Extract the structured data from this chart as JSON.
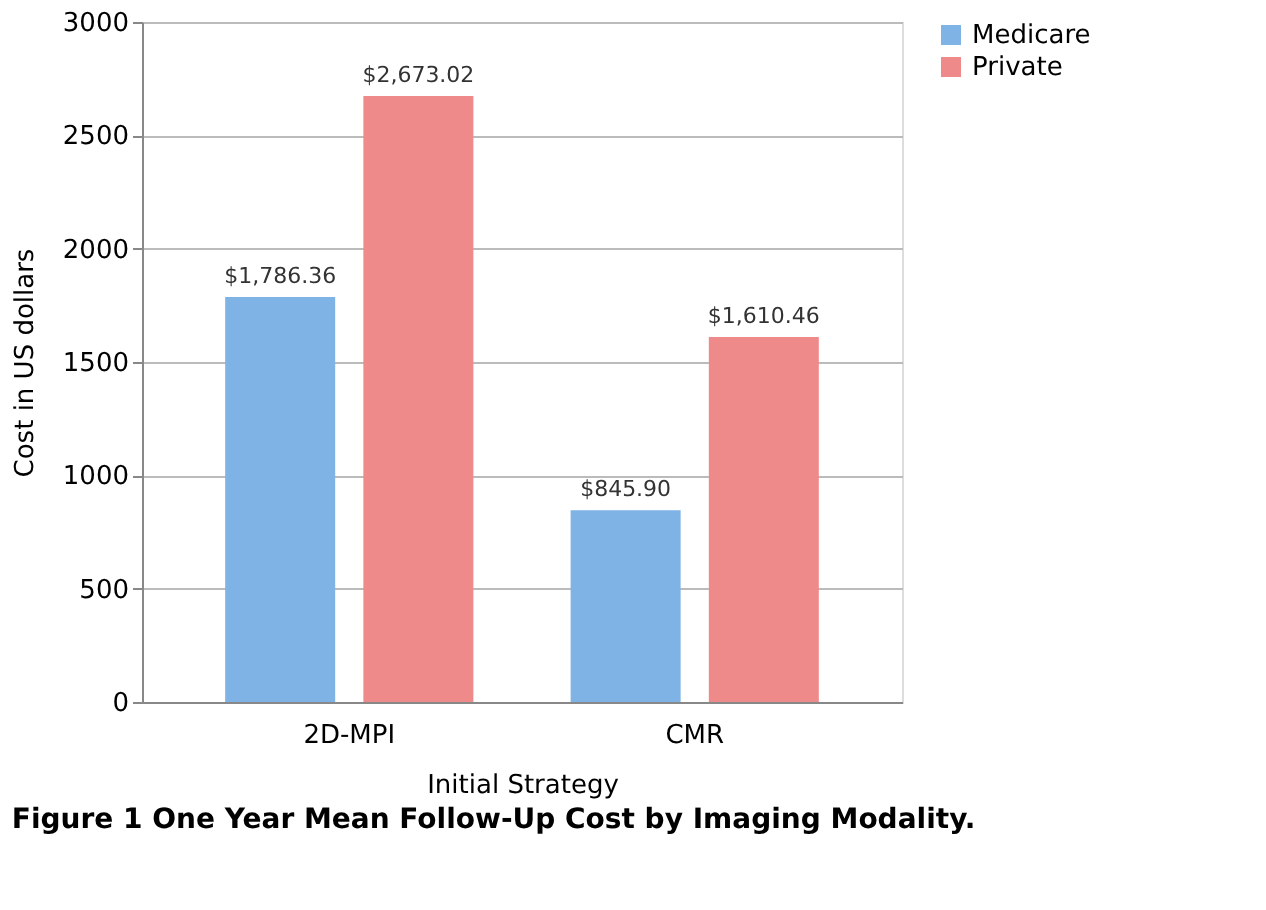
{
  "chart_data": {
    "type": "bar",
    "xlabel": "Initial Strategy",
    "ylabel": "Cost in US dollars",
    "categories": [
      "2D-MPI",
      "CMR"
    ],
    "series": [
      {
        "name": "Medicare",
        "color": "#7fb2e5",
        "values": [
          1786.36,
          845.9
        ],
        "value_labels": [
          "$1,786.36",
          "$845.90"
        ]
      },
      {
        "name": "Private",
        "color": "#ee8a8a",
        "values": [
          2673.02,
          1610.46
        ],
        "value_labels": [
          "$2,673.02",
          "$1,610.46"
        ]
      }
    ],
    "ylim": [
      0,
      3000
    ],
    "yticks": [
      0,
      500,
      1000,
      1500,
      2000,
      2500,
      3000
    ],
    "grid": "y",
    "legend": "right",
    "annotations": [
      "Figure 1 One Year Mean Follow-Up Cost by Imaging Modality."
    ]
  }
}
